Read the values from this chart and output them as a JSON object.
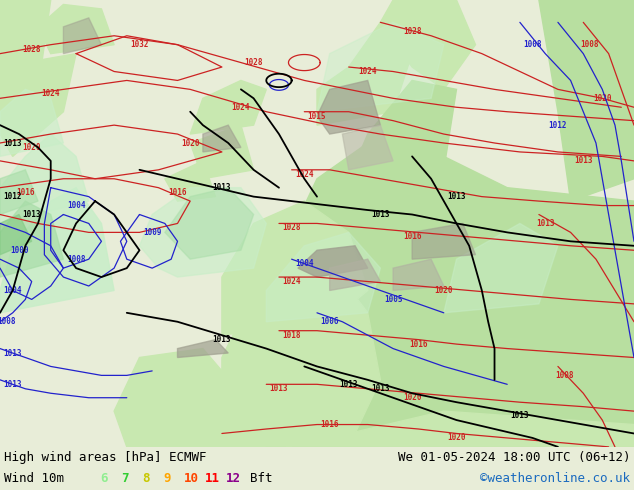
{
  "title_left": "High wind areas [hPa] ECMWF",
  "title_right": "We 01-05-2024 18:00 UTC (06+12)",
  "subtitle_left": "Wind 10m",
  "subtitle_right": "©weatheronline.co.uk",
  "wind_labels": [
    "6",
    "7",
    "8",
    "9",
    "10",
    "11",
    "12"
  ],
  "wind_colors": [
    "#90ee90",
    "#32cd32",
    "#c8c800",
    "#ffa500",
    "#ff4500",
    "#ff0000",
    "#8b008b"
  ],
  "wind_unit": "Bft",
  "text_color": "#000000",
  "copyright_color": "#1a6abf",
  "font_family": "monospace",
  "figsize": [
    6.34,
    4.9
  ],
  "dpi": 100,
  "sea_color": "#f0f0f0",
  "land_color": "#c8e8b0",
  "land_color2": "#b8dfa0",
  "mountain_color": "#a0a090",
  "wind6_fill": "#b0e8b0",
  "wind7_fill": "#90d890",
  "wind8_fill": "#70c870",
  "contour_red": "#cc2222",
  "contour_black": "#000000",
  "contour_blue": "#2222cc",
  "bar_bg": "#e8edd8",
  "map_frame": "#cccccc",
  "label_fontsize": 5.5,
  "contour_lw_red": 0.9,
  "contour_lw_black": 1.3,
  "contour_lw_blue": 0.9
}
